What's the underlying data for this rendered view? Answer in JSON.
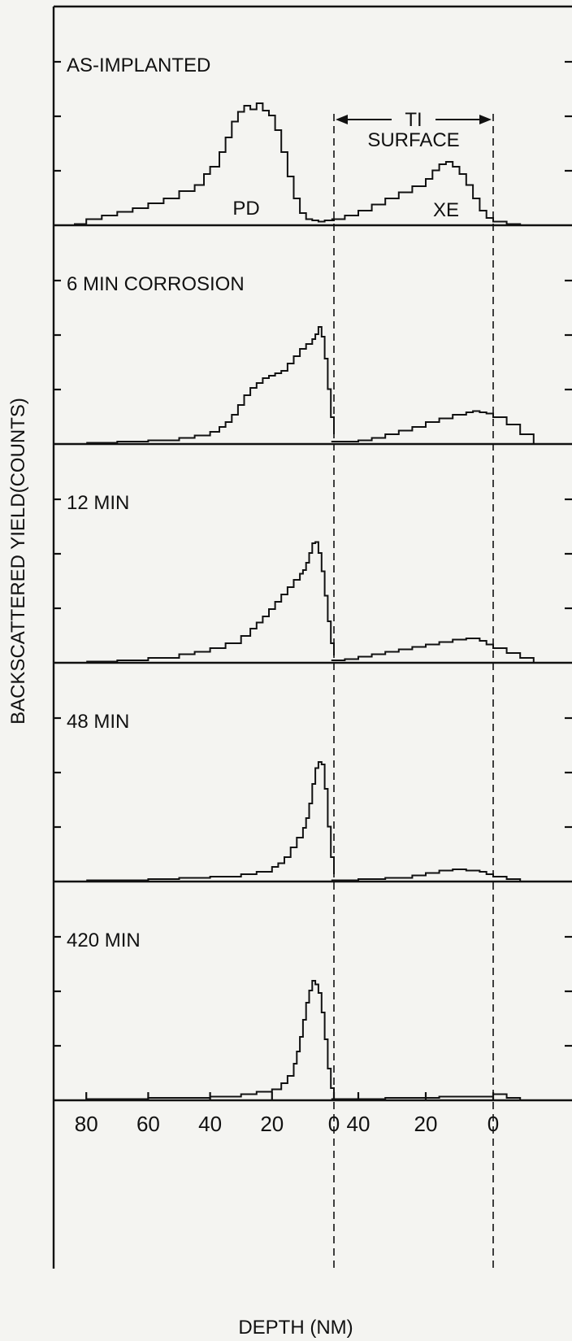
{
  "chart_data": {
    "type": "line",
    "xlabel": "DEPTH (NM)",
    "ylabel": "BACKSCATTERED YIELD(COUNTS)",
    "x_ticks": [
      "80",
      "60",
      "40",
      "20",
      "0",
      "40",
      "20",
      "0"
    ],
    "x_axis_note": "two depth scales: Pd depth (80 to 0 nm, left) and Xe depth (40 to 0 nm, right); ticks are Pd-scale depth for the left part and Xe-scale depth for the right part",
    "annotations": {
      "ti_surface_line1": "TI",
      "ti_surface_line2": "SURFACE",
      "pd_peak": "PD",
      "xe_peak": "XE"
    },
    "grid": false,
    "legend": "none",
    "panels": [
      {
        "label": "AS-IMPLANTED",
        "pd_depth_nm": [
          84,
          80,
          75,
          70,
          65,
          60,
          55,
          50,
          45,
          42,
          40,
          37,
          35,
          33,
          31,
          29,
          27,
          25,
          23,
          21,
          19,
          17,
          15,
          13,
          11,
          9,
          7,
          5,
          3,
          0
        ],
        "pd_yield": [
          0.01,
          0.05,
          0.08,
          0.11,
          0.14,
          0.18,
          0.22,
          0.28,
          0.33,
          0.42,
          0.48,
          0.6,
          0.72,
          0.85,
          0.93,
          0.98,
          0.95,
          1.0,
          0.94,
          0.9,
          0.78,
          0.6,
          0.4,
          0.22,
          0.1,
          0.05,
          0.04,
          0.03,
          0.04,
          0.05
        ],
        "xe_depth_nm": [
          48,
          44,
          40,
          36,
          32,
          28,
          24,
          20,
          18,
          16,
          14,
          12,
          10,
          8,
          6,
          4,
          2,
          0,
          -4,
          -8
        ],
        "xe_yield": [
          0.05,
          0.08,
          0.12,
          0.17,
          0.22,
          0.27,
          0.32,
          0.38,
          0.45,
          0.5,
          0.52,
          0.48,
          0.42,
          0.33,
          0.22,
          0.12,
          0.06,
          0.03,
          0.01,
          0.0
        ]
      },
      {
        "label": "6 MIN CORROSION",
        "pd_depth_nm": [
          80,
          70,
          60,
          50,
          45,
          40,
          37,
          35,
          33,
          31,
          29,
          27,
          25,
          23,
          21,
          19,
          17,
          15,
          13,
          11,
          9,
          7,
          6,
          5,
          4,
          3,
          2,
          1,
          0
        ],
        "pd_yield": [
          0.01,
          0.02,
          0.03,
          0.05,
          0.07,
          0.1,
          0.14,
          0.18,
          0.24,
          0.32,
          0.4,
          0.46,
          0.5,
          0.54,
          0.56,
          0.58,
          0.6,
          0.66,
          0.72,
          0.78,
          0.82,
          0.86,
          0.9,
          0.96,
          0.88,
          0.7,
          0.45,
          0.22,
          0.08
        ],
        "xe_depth_nm": [
          48,
          44,
          40,
          36,
          32,
          28,
          24,
          20,
          16,
          12,
          8,
          6,
          4,
          2,
          0,
          -4,
          -8,
          -12
        ],
        "xe_yield": [
          0.02,
          0.02,
          0.03,
          0.05,
          0.08,
          0.11,
          0.14,
          0.18,
          0.21,
          0.24,
          0.26,
          0.27,
          0.26,
          0.25,
          0.22,
          0.16,
          0.08,
          0.0
        ]
      },
      {
        "label": "12 MIN",
        "pd_depth_nm": [
          80,
          70,
          60,
          50,
          45,
          40,
          35,
          30,
          27,
          25,
          23,
          21,
          19,
          17,
          15,
          13,
          11,
          10,
          9,
          8,
          7,
          6,
          5,
          4,
          3,
          2,
          1,
          0
        ],
        "pd_yield": [
          0.01,
          0.02,
          0.04,
          0.07,
          0.09,
          0.12,
          0.16,
          0.22,
          0.28,
          0.33,
          0.38,
          0.44,
          0.5,
          0.56,
          0.62,
          0.68,
          0.73,
          0.76,
          0.82,
          0.9,
          0.98,
          0.99,
          0.9,
          0.75,
          0.55,
          0.34,
          0.16,
          0.06
        ],
        "xe_depth_nm": [
          48,
          44,
          40,
          36,
          32,
          28,
          24,
          20,
          16,
          12,
          8,
          4,
          2,
          0,
          -4,
          -8,
          -12
        ],
        "xe_yield": [
          0.02,
          0.03,
          0.05,
          0.07,
          0.09,
          0.11,
          0.13,
          0.15,
          0.17,
          0.19,
          0.2,
          0.18,
          0.15,
          0.12,
          0.08,
          0.04,
          0.0
        ]
      },
      {
        "label": "48 MIN",
        "pd_depth_nm": [
          80,
          70,
          60,
          50,
          40,
          30,
          25,
          20,
          18,
          16,
          14,
          12,
          10,
          9,
          8,
          7,
          6,
          5,
          4,
          3,
          2,
          1,
          0
        ],
        "pd_yield": [
          0.01,
          0.01,
          0.02,
          0.03,
          0.04,
          0.06,
          0.08,
          0.12,
          0.15,
          0.2,
          0.28,
          0.36,
          0.44,
          0.52,
          0.64,
          0.8,
          0.93,
          0.98,
          0.96,
          0.76,
          0.45,
          0.2,
          0.06
        ],
        "xe_depth_nm": [
          48,
          40,
          32,
          24,
          20,
          16,
          12,
          8,
          4,
          2,
          0,
          -4,
          -8
        ],
        "xe_yield": [
          0.01,
          0.02,
          0.03,
          0.05,
          0.07,
          0.09,
          0.1,
          0.09,
          0.08,
          0.06,
          0.04,
          0.02,
          0.0
        ]
      },
      {
        "label": "420 MIN",
        "pd_depth_nm": [
          80,
          70,
          60,
          50,
          40,
          30,
          25,
          20,
          17,
          15,
          13,
          12,
          11,
          10,
          9,
          8,
          7,
          6,
          5,
          4,
          3,
          2,
          1,
          0
        ],
        "pd_yield": [
          0.01,
          0.01,
          0.02,
          0.02,
          0.03,
          0.05,
          0.07,
          0.09,
          0.14,
          0.2,
          0.3,
          0.4,
          0.52,
          0.66,
          0.8,
          0.9,
          0.98,
          0.95,
          0.88,
          0.72,
          0.5,
          0.26,
          0.1,
          0.04
        ],
        "xe_depth_nm": [
          48,
          40,
          32,
          24,
          16,
          8,
          4,
          2,
          0,
          -4,
          -8
        ],
        "xe_yield": [
          0.01,
          0.01,
          0.02,
          0.02,
          0.03,
          0.03,
          0.03,
          0.03,
          0.05,
          0.02,
          0.0
        ]
      }
    ]
  }
}
